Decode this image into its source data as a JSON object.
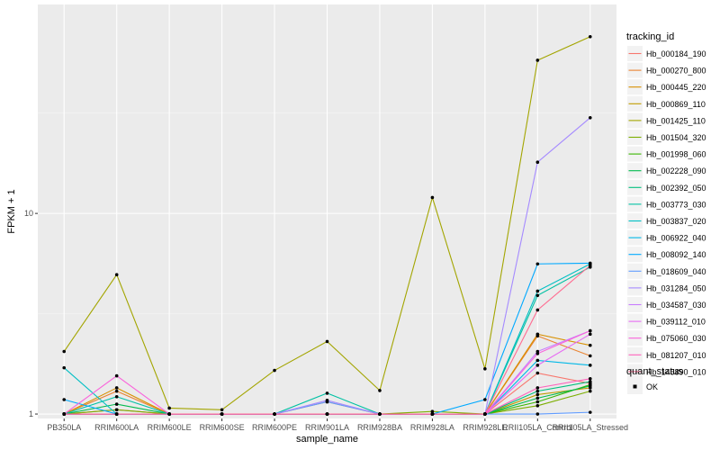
{
  "chart_data": {
    "type": "line",
    "xlabel": "sample_name",
    "ylabel": "FPKM + 1",
    "y_scale": "log10",
    "ylim": [
      0.95,
      110
    ],
    "y_ticks": [
      1,
      10
    ],
    "y_tick_labels": [
      "1",
      "10"
    ],
    "grid": true,
    "legend_position": "right",
    "categories": [
      "PB350LA",
      "RRIM600LA",
      "RRIM600LE",
      "RRIM600SE",
      "RRIM600PE",
      "RRIM901LA",
      "RRIM928BA",
      "RRIM928LA",
      "RRIM928LE",
      "RRII105LA_Control",
      "RRII105LA_Stressed"
    ],
    "series": [
      {
        "name": "Hb_000184_190",
        "color": "#F8766D",
        "values": [
          1.0,
          1.05,
          1.0,
          1.0,
          1.0,
          1.0,
          1.0,
          1.0,
          1.0,
          1.6,
          1.42
        ]
      },
      {
        "name": "Hb_000270_800",
        "color": "#EA8331",
        "values": [
          1.0,
          1.3,
          1.0,
          1.0,
          1.0,
          1.15,
          1.0,
          1.0,
          1.0,
          2.45,
          1.95
        ]
      },
      {
        "name": "Hb_000445_220",
        "color": "#D89000",
        "values": [
          1.0,
          1.35,
          1.0,
          1.0,
          1.0,
          1.0,
          1.0,
          1.0,
          1.0,
          2.5,
          2.2
        ]
      },
      {
        "name": "Hb_000869_110",
        "color": "#C09B00",
        "values": [
          1.0,
          1.0,
          1.0,
          1.0,
          1.0,
          1.0,
          1.0,
          1.0,
          1.0,
          1.25,
          1.35
        ]
      },
      {
        "name": "Hb_001425_110",
        "color": "#A3A500",
        "values": [
          2.05,
          4.95,
          1.07,
          1.05,
          1.65,
          2.3,
          1.31,
          12.0,
          1.68,
          58.0,
          76.0
        ]
      },
      {
        "name": "Hb_001504_320",
        "color": "#7CAE00",
        "values": [
          1.0,
          1.05,
          1.0,
          1.0,
          1.0,
          1.0,
          1.0,
          1.03,
          1.0,
          1.1,
          1.3
        ]
      },
      {
        "name": "Hb_001998_060",
        "color": "#39B600",
        "values": [
          1.0,
          1.0,
          1.0,
          1.0,
          1.0,
          1.0,
          1.0,
          1.0,
          1.0,
          1.15,
          1.4
        ]
      },
      {
        "name": "Hb_002228_090",
        "color": "#00BB4E",
        "values": [
          1.0,
          1.12,
          1.0,
          1.0,
          1.0,
          1.0,
          1.0,
          1.0,
          1.0,
          1.2,
          1.38
        ]
      },
      {
        "name": "Hb_002392_050",
        "color": "#00BF7D",
        "values": [
          1.0,
          1.0,
          1.0,
          1.0,
          1.0,
          1.0,
          1.0,
          1.0,
          1.0,
          1.3,
          1.45
        ]
      },
      {
        "name": "Hb_003773_030",
        "color": "#00C1A3",
        "values": [
          1.0,
          1.22,
          1.0,
          1.0,
          1.0,
          1.27,
          1.0,
          1.0,
          1.0,
          3.9,
          5.4
        ]
      },
      {
        "name": "Hb_003837_020",
        "color": "#00BFC4",
        "values": [
          1.7,
          1.0,
          1.0,
          1.0,
          1.0,
          1.0,
          1.0,
          1.0,
          1.0,
          4.1,
          5.6
        ]
      },
      {
        "name": "Hb_006922_040",
        "color": "#00B8E7",
        "values": [
          1.0,
          1.0,
          1.0,
          1.0,
          1.0,
          1.0,
          1.0,
          1.0,
          1.0,
          1.85,
          1.75
        ]
      },
      {
        "name": "Hb_008092_140",
        "color": "#00A9FF",
        "values": [
          1.18,
          1.0,
          1.0,
          1.0,
          1.0,
          1.0,
          1.0,
          1.0,
          1.18,
          5.6,
          5.65
        ]
      },
      {
        "name": "Hb_018609_040",
        "color": "#619CFF",
        "values": [
          1.0,
          1.0,
          1.0,
          1.0,
          1.0,
          1.15,
          1.0,
          1.0,
          1.0,
          1.0,
          1.02
        ]
      },
      {
        "name": "Hb_031284_050",
        "color": "#A58AFF",
        "values": [
          1.0,
          1.0,
          1.0,
          1.0,
          1.0,
          1.17,
          1.0,
          1.0,
          1.0,
          18.0,
          30.0
        ]
      },
      {
        "name": "Hb_034587_030",
        "color": "#C77CFF",
        "values": [
          1.0,
          1.0,
          1.0,
          1.0,
          1.0,
          1.0,
          1.0,
          1.0,
          1.0,
          2.05,
          2.6
        ]
      },
      {
        "name": "Hb_039112_010",
        "color": "#E76BF3",
        "values": [
          1.0,
          1.0,
          1.0,
          1.0,
          1.0,
          1.0,
          1.0,
          1.0,
          1.0,
          1.75,
          2.5
        ]
      },
      {
        "name": "Hb_075060_030",
        "color": "#FA62DB",
        "values": [
          1.0,
          1.55,
          1.0,
          1.0,
          1.0,
          1.0,
          1.0,
          1.0,
          1.0,
          2.0,
          2.6
        ]
      },
      {
        "name": "Hb_081207_010",
        "color": "#FF62BC",
        "values": [
          1.0,
          1.0,
          1.0,
          1.0,
          1.0,
          1.0,
          1.0,
          1.0,
          1.0,
          1.35,
          1.5
        ]
      },
      {
        "name": "Hb_145890_010",
        "color": "#FF6C91",
        "values": [
          1.0,
          1.0,
          1.0,
          1.0,
          1.0,
          1.0,
          1.0,
          1.0,
          1.0,
          3.3,
          5.5
        ]
      }
    ],
    "legend": {
      "title": "tracking_id",
      "entries": [
        "Hb_000184_190",
        "Hb_000270_800",
        "Hb_000445_220",
        "Hb_000869_110",
        "Hb_001425_110",
        "Hb_001504_320",
        "Hb_001998_060",
        "Hb_002228_090",
        "Hb_002392_050",
        "Hb_003773_030",
        "Hb_003837_020",
        "Hb_006922_040",
        "Hb_008092_140",
        "Hb_018609_040",
        "Hb_031284_050",
        "Hb_034587_030",
        "Hb_039112_010",
        "Hb_075060_030",
        "Hb_081207_010",
        "Hb_145890_010"
      ]
    },
    "quant_legend": {
      "title": "quant_status",
      "entries": [
        "OK"
      ]
    },
    "colors": {
      "panel_background": "#EBEBEB",
      "grid_major": "#FFFFFF",
      "point": "#000000"
    }
  }
}
